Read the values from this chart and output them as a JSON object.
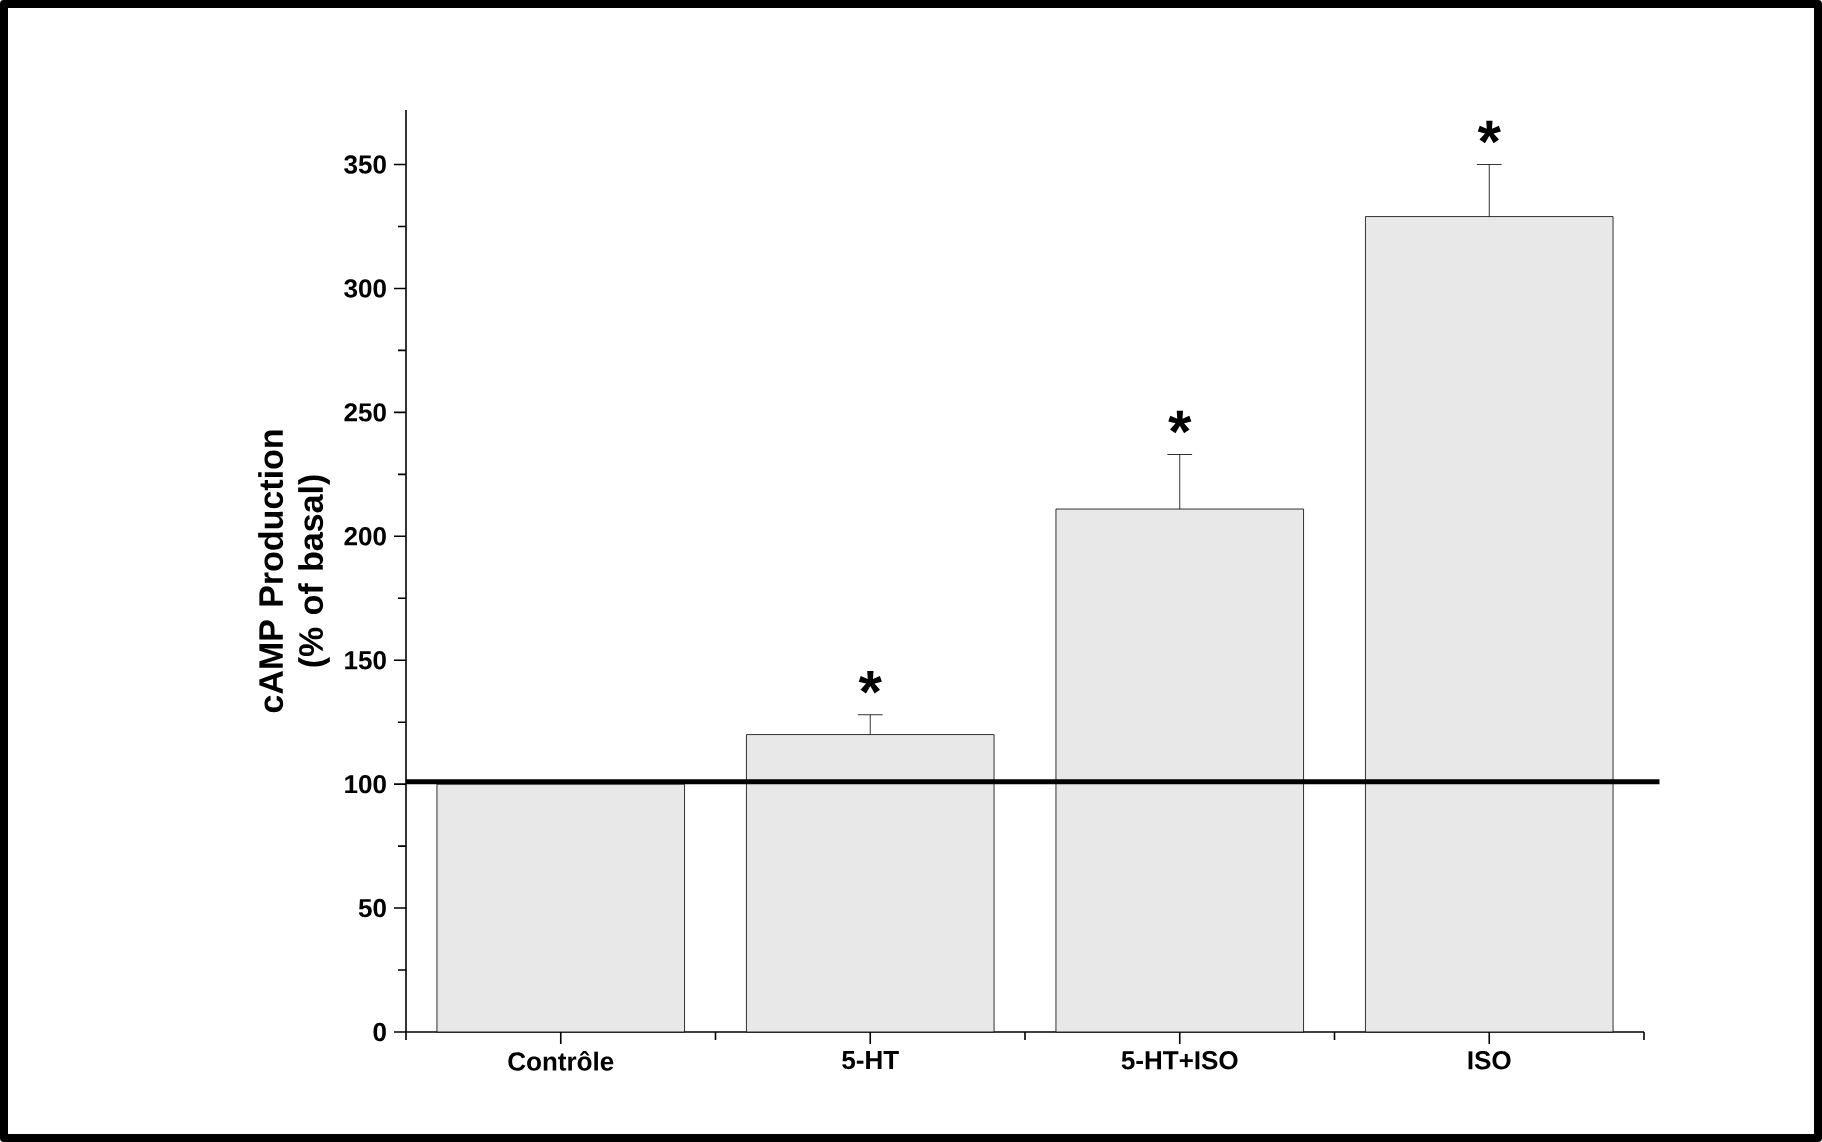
{
  "chart_data": {
    "type": "bar",
    "ylabel": "cAMP Production (% of basal)",
    "categories": [
      "Contrôle",
      "5-HT",
      "5-HT+ISO",
      "ISO"
    ],
    "values": [
      100,
      120,
      211,
      329
    ],
    "errors": [
      null,
      [
        120,
        128
      ],
      [
        211,
        233
      ],
      [
        329,
        350
      ]
    ],
    "color": "#e8e8e8",
    "ylim": [
      0,
      372
    ],
    "yticks": [
      0,
      50,
      100,
      150,
      200,
      250,
      300,
      350
    ],
    "ref_lines": [
      {
        "axis": "y",
        "value": 101,
        "color": "#000000"
      }
    ],
    "annotations": [
      "*",
      "*",
      "*"
    ]
  }
}
